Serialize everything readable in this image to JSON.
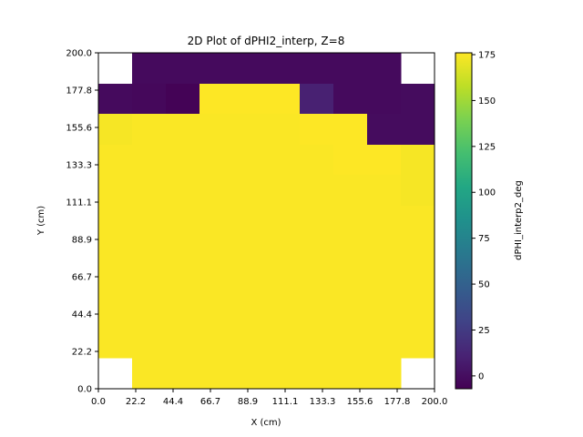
{
  "chart_data": {
    "type": "heatmap",
    "title": "2D Plot of dPHI2_interp, Z=8",
    "xlabel": "X (cm)",
    "ylabel": "Y (cm)",
    "colorbar_label": "dPHI_interp2_deg",
    "colormap": "viridis",
    "xlim": [
      0,
      200
    ],
    "ylim": [
      0,
      200
    ],
    "x_ticks": [
      "0.0",
      "22.2",
      "44.4",
      "66.7",
      "88.9",
      "111.1",
      "133.3",
      "155.6",
      "177.8",
      "200.0"
    ],
    "y_ticks": [
      "0.0",
      "22.2",
      "44.4",
      "66.7",
      "88.9",
      "111.1",
      "133.3",
      "155.6",
      "177.8",
      "200.0"
    ],
    "vmin": -7,
    "vmax": 176,
    "colorbar_ticks": [
      "0",
      "25",
      "50",
      "75",
      "100",
      "125",
      "150",
      "175"
    ],
    "colorbar_tick_values": [
      0,
      25,
      50,
      75,
      100,
      125,
      150,
      175
    ],
    "grid_rows_top_to_bottom": [
      [
        null,
        -2,
        -2,
        -2,
        -2,
        -2,
        -2,
        -2,
        -2,
        null
      ],
      [
        -2,
        -3,
        -6,
        176,
        176,
        176,
        10,
        -2,
        -2,
        -1
      ],
      [
        174,
        175,
        175,
        175,
        175,
        175,
        176,
        176,
        -1,
        -1
      ],
      [
        175,
        175,
        175,
        175,
        175,
        175,
        175,
        176,
        176,
        174
      ],
      [
        175,
        175,
        175,
        175,
        175,
        175,
        175,
        175,
        175,
        174
      ],
      [
        175,
        175,
        175,
        175,
        175,
        175,
        175,
        175,
        175,
        175
      ],
      [
        175,
        175,
        175,
        175,
        175,
        175,
        175,
        175,
        175,
        175
      ],
      [
        175,
        175,
        175,
        175,
        175,
        175,
        175,
        175,
        175,
        175
      ],
      [
        175,
        175,
        175,
        175,
        175,
        175,
        175,
        175,
        175,
        175
      ],
      [
        175,
        175,
        175,
        175,
        175,
        175,
        175,
        175,
        175,
        175
      ],
      [
        null,
        175,
        175,
        175,
        175,
        175,
        175,
        175,
        175,
        null
      ]
    ]
  }
}
